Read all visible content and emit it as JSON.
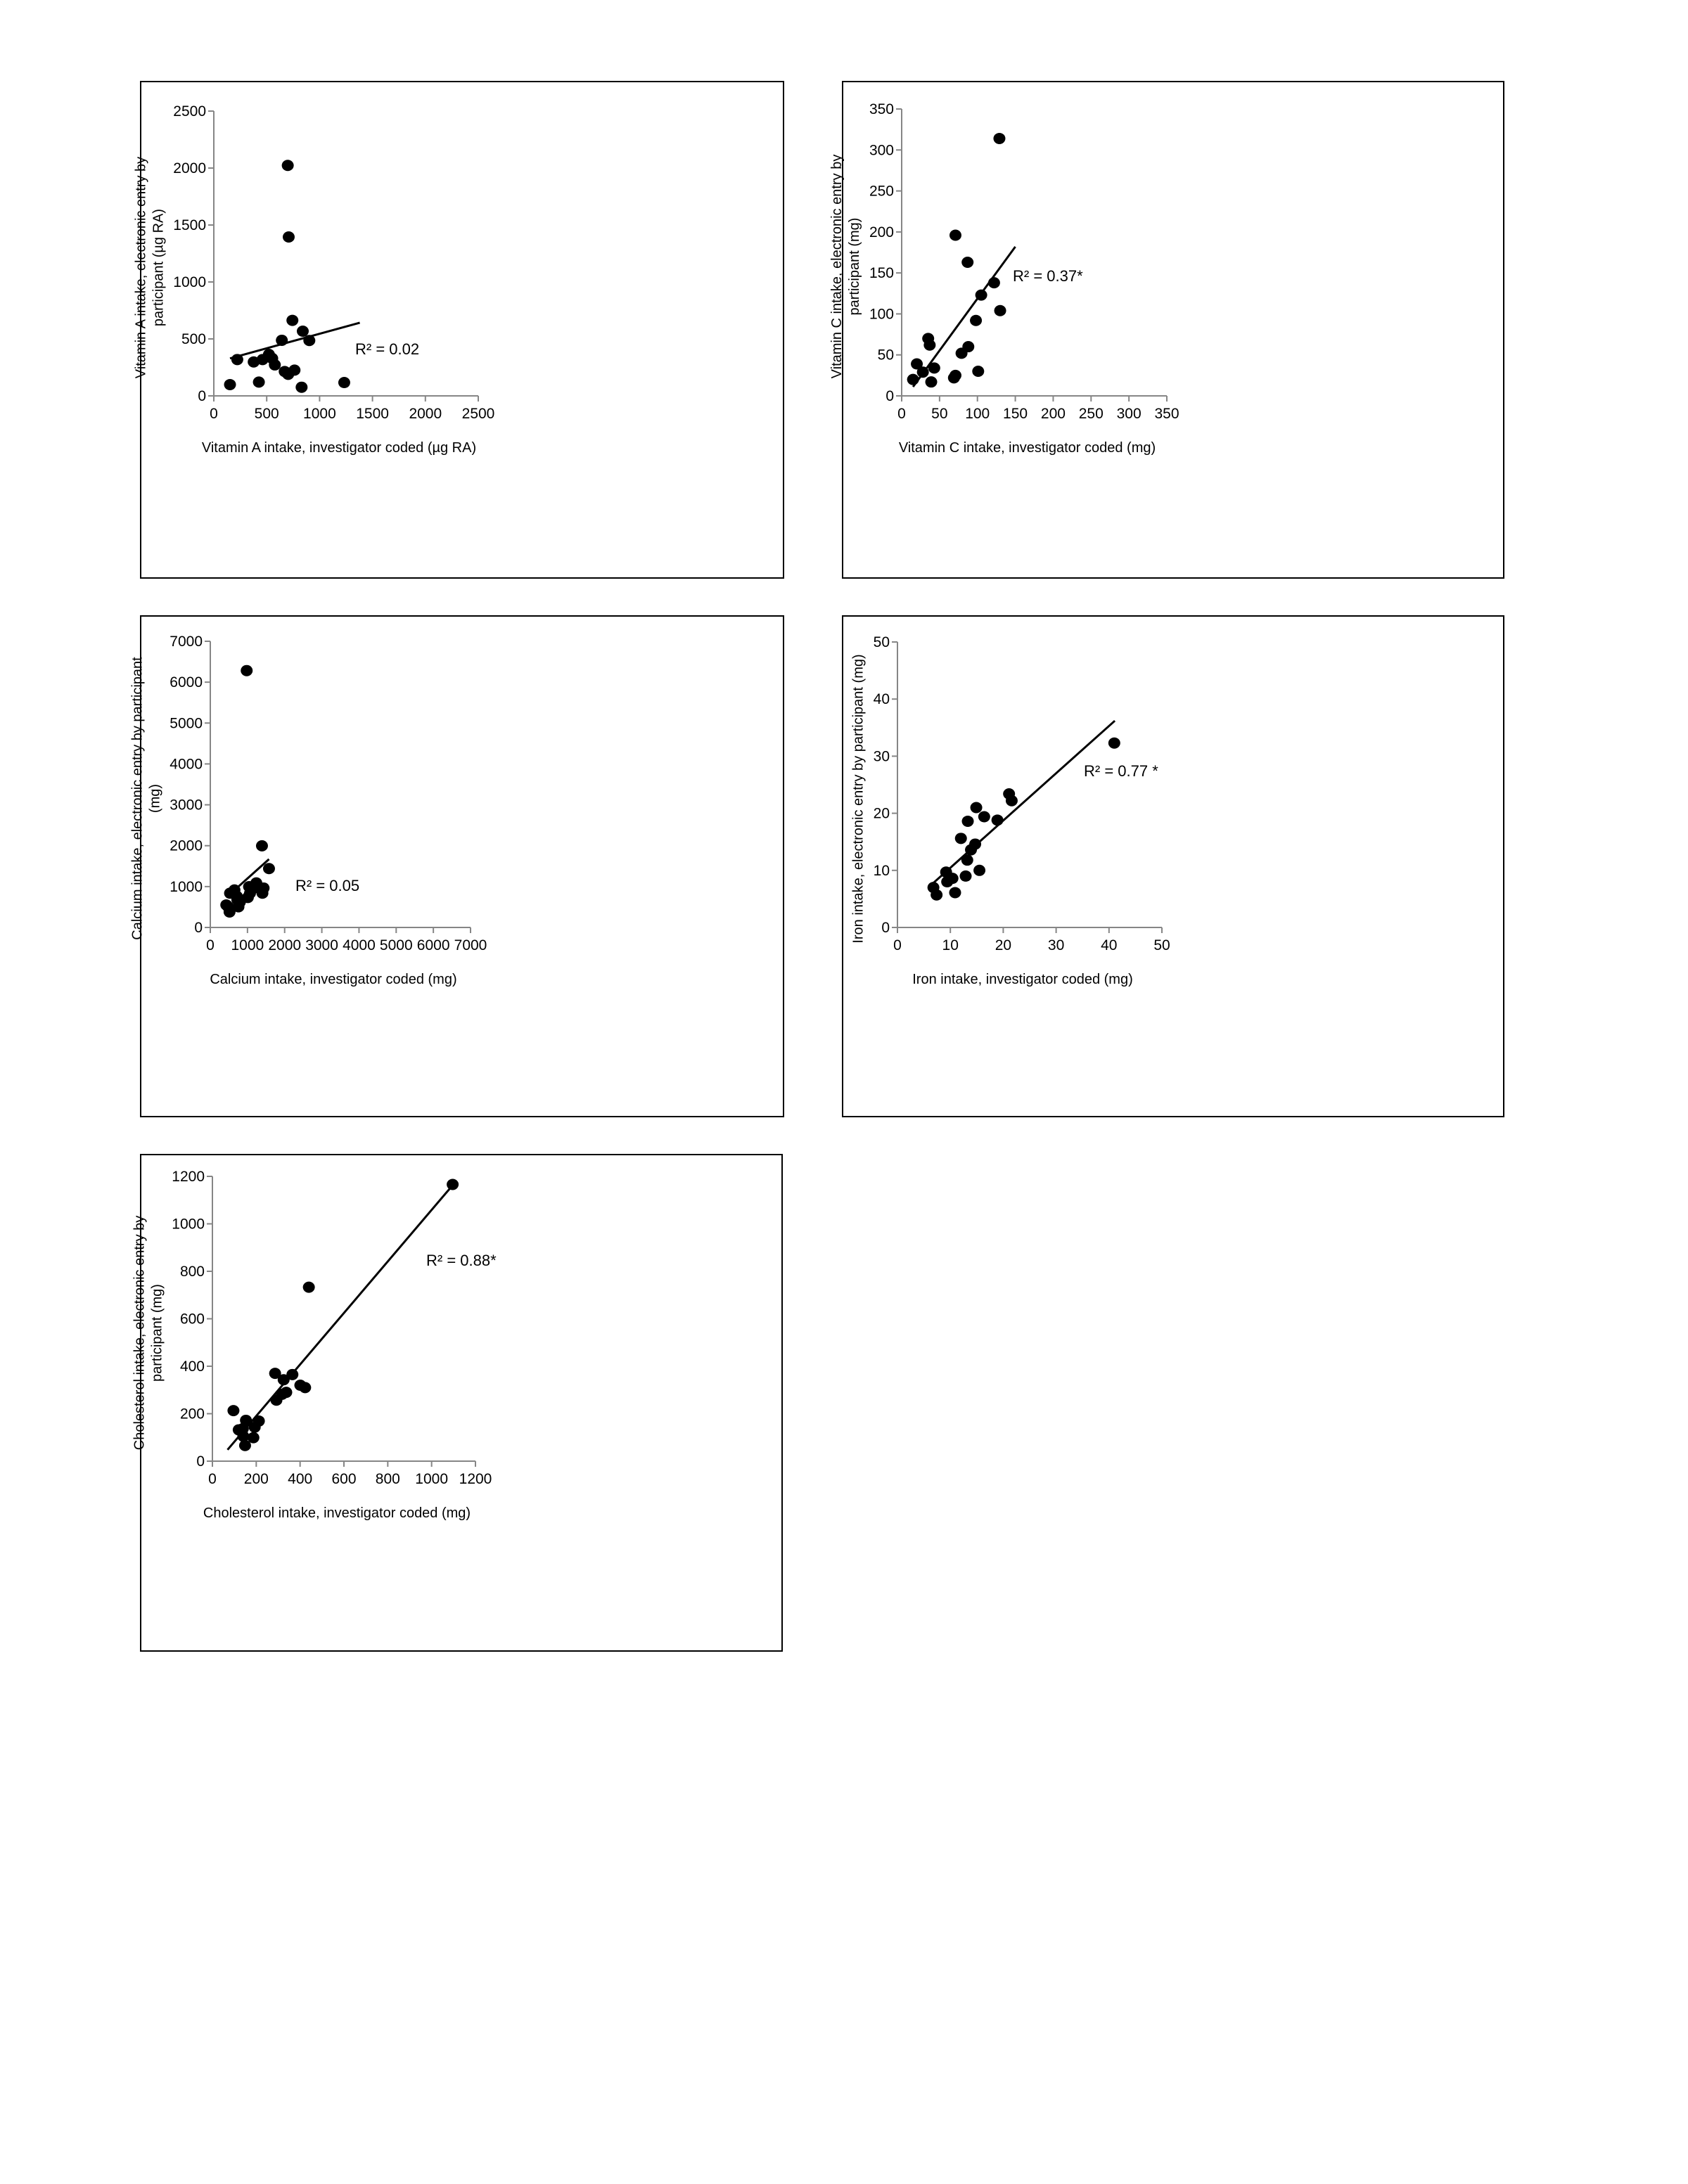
{
  "chart_data": [
    {
      "type": "scatter",
      "title": "",
      "xlabel": "Vitamin A intake, investigator coded (µg RA)",
      "ylabel_lines": [
        "Vitamin A intake, electronic entry by",
        "participant (µg RA)"
      ],
      "xlim": [
        0,
        2500
      ],
      "ylim": [
        0,
        2500
      ],
      "xticks": [
        0,
        500,
        1000,
        1500,
        2000,
        2500
      ],
      "yticks": [
        0,
        500,
        1000,
        1500,
        2000,
        2500
      ],
      "points": [
        [
          153,
          99
        ],
        [
          222,
          319
        ],
        [
          377,
          298
        ],
        [
          426,
          121
        ],
        [
          461,
          319
        ],
        [
          521,
          364
        ],
        [
          552,
          329
        ],
        [
          577,
          272
        ],
        [
          643,
          488
        ],
        [
          670,
          214
        ],
        [
          699,
          2023
        ],
        [
          703,
          189
        ],
        [
          708,
          1395
        ],
        [
          743,
          663
        ],
        [
          763,
          226
        ],
        [
          830,
          76
        ],
        [
          841,
          568
        ],
        [
          903,
          486
        ],
        [
          1233,
          117
        ]
      ],
      "trendline": [
        [
          153,
          329
        ],
        [
          1380,
          642
        ]
      ],
      "r2_label": "R² = 0.02",
      "grid": false
    },
    {
      "type": "scatter",
      "title": "",
      "xlabel": "Vitamin C intake, investigator coded (mg)",
      "ylabel_lines": [
        "Vitamin C intake, electronic entry by",
        "participant (mg)"
      ],
      "xlim": [
        0,
        350
      ],
      "ylim": [
        0,
        350
      ],
      "xticks": [
        0,
        50,
        100,
        150,
        200,
        250,
        300,
        350
      ],
      "yticks": [
        0,
        50,
        100,
        150,
        200,
        250,
        300,
        350
      ],
      "points": [
        [
          15,
          20
        ],
        [
          20,
          39
        ],
        [
          28,
          29
        ],
        [
          35,
          70
        ],
        [
          37,
          62
        ],
        [
          39,
          17
        ],
        [
          43,
          34
        ],
        [
          69,
          22
        ],
        [
          71,
          25
        ],
        [
          71,
          196
        ],
        [
          79,
          52
        ],
        [
          87,
          163
        ],
        [
          88,
          60
        ],
        [
          98,
          92
        ],
        [
          101,
          30
        ],
        [
          105,
          123
        ],
        [
          122,
          138
        ],
        [
          129,
          314
        ],
        [
          130,
          104
        ]
      ],
      "trendline": [
        [
          15,
          11
        ],
        [
          150,
          182
        ]
      ],
      "r2_label": "R² = 0.37*",
      "grid": false
    },
    {
      "type": "scatter",
      "title": "",
      "xlabel": "Calcium intake, investigator coded (mg)",
      "ylabel_lines": [
        "Calcium intake, electronic entry by participant",
        "(mg)"
      ],
      "xlim": [
        0,
        7000
      ],
      "ylim": [
        0,
        7000
      ],
      "xticks": [
        0,
        1000,
        2000,
        3000,
        4000,
        5000,
        6000,
        7000
      ],
      "yticks": [
        0,
        1000,
        2000,
        3000,
        4000,
        5000,
        6000,
        7000
      ],
      "points": [
        [
          430,
          551
        ],
        [
          480,
          505
        ],
        [
          518,
          379
        ],
        [
          531,
          838
        ],
        [
          651,
          918
        ],
        [
          714,
          763
        ],
        [
          727,
          677
        ],
        [
          758,
          505
        ],
        [
          796,
          620
        ],
        [
          979,
          6283
        ],
        [
          1011,
          734
        ],
        [
          1042,
          998
        ],
        [
          1068,
          838
        ],
        [
          1206,
          975
        ],
        [
          1238,
          1090
        ],
        [
          1390,
          1997
        ],
        [
          1402,
          838
        ],
        [
          1434,
          964
        ],
        [
          1579,
          1440
        ]
      ],
      "trendline": [
        [
          430,
          734
        ],
        [
          1579,
          1670
        ]
      ],
      "r2_label": "R² = 0.05",
      "grid": false
    },
    {
      "type": "scatter",
      "title": "",
      "xlabel": "Iron intake, investigator coded (mg)",
      "ylabel_lines": [
        "Iron intake, electronic entry by participant (mg)"
      ],
      "xlim": [
        0,
        50
      ],
      "ylim": [
        0,
        50
      ],
      "xticks": [
        0,
        10,
        20,
        30,
        40,
        50
      ],
      "yticks": [
        0,
        10,
        20,
        30,
        40,
        50
      ],
      "points": [
        [
          6.8,
          7.0
        ],
        [
          7.4,
          5.7
        ],
        [
          9.2,
          9.7
        ],
        [
          9.4,
          8.0
        ],
        [
          10.4,
          8.6
        ],
        [
          10.9,
          6.1
        ],
        [
          12.0,
          15.6
        ],
        [
          12.9,
          9.0
        ],
        [
          13.2,
          11.8
        ],
        [
          13.3,
          18.6
        ],
        [
          13.9,
          13.6
        ],
        [
          14.7,
          14.6
        ],
        [
          14.9,
          21.0
        ],
        [
          15.5,
          10.0
        ],
        [
          16.4,
          19.4
        ],
        [
          18.9,
          18.8
        ],
        [
          21.1,
          23.4
        ],
        [
          21.6,
          22.2
        ],
        [
          41.0,
          32.3
        ]
      ],
      "trendline": [
        [
          6.8,
          7.8
        ],
        [
          41.1,
          36.2
        ]
      ],
      "r2_label": "R² = 0.77 *",
      "grid": false
    },
    {
      "type": "scatter",
      "title": "",
      "xlabel": "Cholesterol intake, investigator coded (mg)",
      "ylabel_lines": [
        "Cholesterol intake, electronic entry by",
        "participant (mg)"
      ],
      "xlim": [
        0,
        1200
      ],
      "ylim": [
        0,
        1200
      ],
      "xticks": [
        0,
        200,
        400,
        600,
        800,
        1000,
        1200
      ],
      "yticks": [
        0,
        200,
        400,
        600,
        800,
        1000,
        1200
      ],
      "points": [
        [
          96,
          213
        ],
        [
          120,
          132
        ],
        [
          139,
          137
        ],
        [
          141,
          105
        ],
        [
          149,
          66
        ],
        [
          153,
          172
        ],
        [
          187,
          99
        ],
        [
          193,
          143
        ],
        [
          212,
          169
        ],
        [
          286,
          370
        ],
        [
          292,
          257
        ],
        [
          318,
          282
        ],
        [
          325,
          343
        ],
        [
          337,
          290
        ],
        [
          365,
          365
        ],
        [
          401,
          320
        ],
        [
          423,
          310
        ],
        [
          440,
          733
        ],
        [
          1096,
          1166
        ]
      ],
      "trendline": [
        [
          69,
          48
        ],
        [
          1087,
          1153
        ]
      ],
      "r2_label": "R² = 0.88*",
      "grid": false
    }
  ],
  "colors": {
    "marker": "#000000",
    "axis": "#868686",
    "frame": "#000000"
  }
}
